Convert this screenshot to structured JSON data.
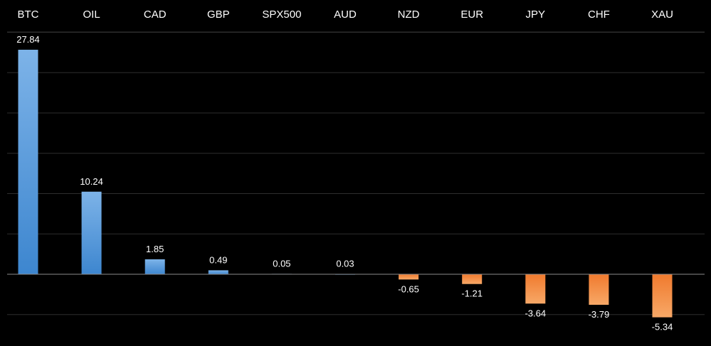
{
  "chart_data": {
    "type": "bar",
    "title": "",
    "xlabel": "",
    "ylabel": "",
    "categories": [
      "BTC",
      "OIL",
      "CAD",
      "GBP",
      "SPX500",
      "AUD",
      "NZD",
      "EUR",
      "JPY",
      "CHF",
      "XAU"
    ],
    "values": [
      27.84,
      10.24,
      1.85,
      0.49,
      0.05,
      0.03,
      -0.65,
      -1.21,
      -3.64,
      -3.79,
      -5.34
    ],
    "value_labels": [
      "27.84",
      "10.24",
      "1.85",
      "0.49",
      "0.05",
      "0.03",
      "-0.65",
      "-1.21",
      "-3.64",
      "-3.79",
      "-5.34"
    ],
    "ylim": [
      -6,
      30
    ],
    "grid": true,
    "legend": "none",
    "category_axis_position": "top",
    "colors": {
      "background": "#000000",
      "positive_top": "#7db3e8",
      "positive_bottom": "#3d86cf",
      "negative_top": "#f07a2e",
      "negative_bottom": "#f7a867",
      "text": "#ffffff",
      "grid": "#2e2e2e",
      "axis": "#8c8c8c"
    }
  }
}
